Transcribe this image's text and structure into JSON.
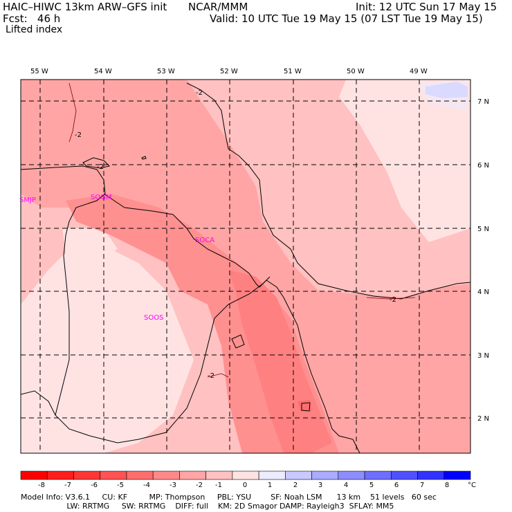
{
  "header": {
    "title": "HAIC–HIWC 13km ARW–GFS init",
    "org": "NCAR/MMM",
    "init": "Init: 12 UTC Sun 17 May 15",
    "fcst": "Fcst:   46 h",
    "valid": "Valid: 10 UTC Tue 19 May 15 (07 LST Tue 19 May 15)",
    "field": "Lifted index"
  },
  "map": {
    "lon_labels": [
      "55 W",
      "54 W",
      "53 W",
      "52 W",
      "51 W",
      "50 W",
      "49 W"
    ],
    "lat_labels": [
      "7 N",
      "6 N",
      "5 N",
      "4 N",
      "3 N",
      "2 N"
    ],
    "stations": [
      "SMJP",
      "SOGM",
      "SOCA",
      "SOOS"
    ],
    "contour_labels": [
      "-2",
      "-2",
      "-2",
      "-2",
      "-2"
    ]
  },
  "colorbar": {
    "labels": [
      "-8",
      "-7",
      "-6",
      "-5",
      "-4",
      "-3",
      "-2",
      "-1",
      "0",
      "1",
      "2",
      "3",
      "4",
      "5",
      "6",
      "7",
      "8"
    ],
    "unit": "°C",
    "colors": [
      "#ff0000",
      "#ff1d1d",
      "#ff3636",
      "#ff5252",
      "#ff6e6e",
      "#ff8989",
      "#ffa5a5",
      "#ffc1c1",
      "#ffe3e3",
      "#ececff",
      "#c9c9ff",
      "#ababff",
      "#8d8dff",
      "#6e6eff",
      "#5050ff",
      "#3232ff",
      "#0000ff"
    ]
  },
  "footer": {
    "line1": "Model Info: V3.6.1     CU: KF         MP: Thompson     PBL: YSU        SF: Noah LSM      13 km    51 levels   60 sec",
    "line2": "                   LW: RRTMG     SW: RRTMG    DIFF: full    KM: 2D Smagor DAMP: Rayleigh3  SFLAY: MM5"
  }
}
